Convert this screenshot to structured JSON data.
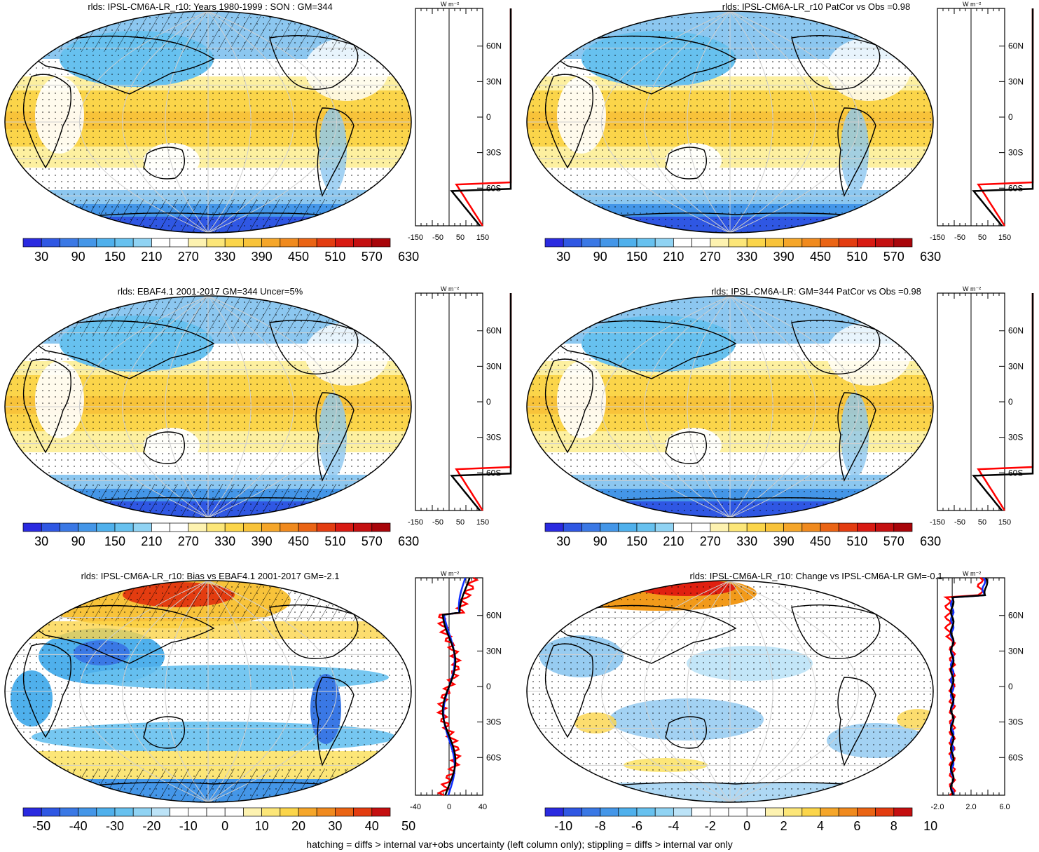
{
  "colors": {
    "blue_dark": "#1e2fd6",
    "blue_mid": "#3a8be0",
    "blue_light": "#8cc7f0",
    "white": "#ffffff",
    "yellow_light": "#fdf0a0",
    "yellow": "#fbd54a",
    "orange": "#f29a1a",
    "red": "#e02010",
    "land_outline": "#000000",
    "zonal_red": "#ff0000",
    "zonal_blue": "#1030ff",
    "zonal_black": "#000000"
  },
  "zonal_axis": {
    "unit_label": "W m⁻²",
    "lat_labels": [
      "60N",
      "30N",
      "0",
      "30S",
      "60S"
    ]
  },
  "panels": [
    {
      "id": "p1",
      "title": "rlds: IPSL-CM6A-LR_r10: Years 1980-1999 : SON : GM=344",
      "colorbar_labels": [
        "30",
        "90",
        "150",
        "210",
        "270",
        "330",
        "390",
        "450",
        "510",
        "570",
        "630"
      ],
      "zonal_x_labels": [
        "-150",
        "-50",
        "50",
        "150"
      ],
      "kind": "abs"
    },
    {
      "id": "p2",
      "title": "rlds: IPSL-CM6A-LR_r10 PatCor vs Obs =0.98",
      "colorbar_labels": [
        "30",
        "90",
        "150",
        "210",
        "270",
        "330",
        "390",
        "450",
        "510",
        "570",
        "630"
      ],
      "zonal_x_labels": [
        "-150",
        "-50",
        "50",
        "150"
      ],
      "kind": "abs"
    },
    {
      "id": "p3",
      "title": "rlds: EBAF4.1 2001-2017 GM=344 Uncer=5%",
      "colorbar_labels": [
        "30",
        "90",
        "150",
        "210",
        "270",
        "330",
        "390",
        "450",
        "510",
        "570",
        "630"
      ],
      "zonal_x_labels": [
        "-150",
        "-50",
        "50",
        "150"
      ],
      "kind": "abs"
    },
    {
      "id": "p4",
      "title": "rlds: IPSL-CM6A-LR: GM=344 PatCor vs Obs =0.98",
      "colorbar_labels": [
        "30",
        "90",
        "150",
        "210",
        "270",
        "330",
        "390",
        "450",
        "510",
        "570",
        "630"
      ],
      "zonal_x_labels": [
        "-150",
        "-50",
        "50",
        "150"
      ],
      "kind": "abs"
    },
    {
      "id": "p5",
      "title": "rlds: IPSL-CM6A-LR_r10: Bias vs EBAF4.1 2001-2017  GM=-2.1",
      "colorbar_labels": [
        "-50",
        "-40",
        "-30",
        "-20",
        "-10",
        "0",
        "10",
        "20",
        "30",
        "40",
        "50"
      ],
      "zonal_x_labels": [
        "-40",
        "0",
        "40"
      ],
      "kind": "bias"
    },
    {
      "id": "p6",
      "title": "rlds: IPSL-CM6A-LR_r10: Change vs IPSL-CM6A-LR GM=-0.1",
      "colorbar_labels": [
        "-10",
        "-8",
        "-6",
        "-4",
        "-2",
        "0",
        "2",
        "4",
        "6",
        "8",
        "10"
      ],
      "zonal_x_labels": [
        "-2.0",
        "2.0",
        "6.0"
      ],
      "kind": "change"
    }
  ],
  "footer": "hatching = diffs > internal var+obs uncertainty (left column only); stippling = diffs > internal var only"
}
